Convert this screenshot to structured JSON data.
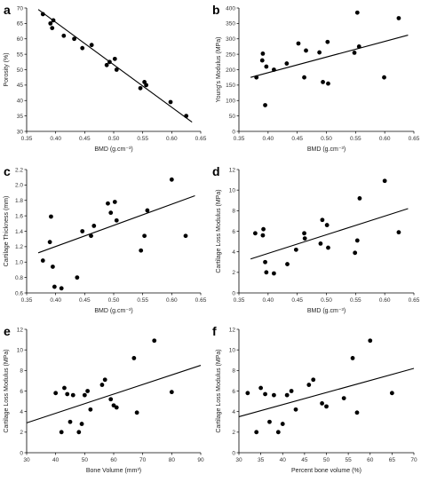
{
  "chart_data": [
    {
      "panel": "a",
      "type": "scatter",
      "xlabel": "BMD (g.cm⁻³)",
      "ylabel": "Porosity (%)",
      "xlim": [
        0.35,
        0.65
      ],
      "ylim": [
        30,
        70
      ],
      "xticks": [
        0.35,
        0.4,
        0.45,
        0.5,
        0.55,
        0.6,
        0.65
      ],
      "yticks": [
        30,
        35,
        40,
        45,
        50,
        55,
        60,
        65,
        70
      ],
      "xtick_labels": [
        "0.35",
        "0.40",
        "0.45",
        "0.50",
        "0.55",
        "0.60",
        "0.65"
      ],
      "ytick_labels": [
        "30",
        "35",
        "40",
        "45",
        "50",
        "55",
        "60",
        "65",
        "70"
      ],
      "x": [
        0.378,
        0.391,
        0.394,
        0.396,
        0.414,
        0.432,
        0.446,
        0.462,
        0.488,
        0.493,
        0.502,
        0.505,
        0.546,
        0.553,
        0.556,
        0.598,
        0.625
      ],
      "y": [
        68.0,
        65.0,
        63.5,
        66.0,
        61.0,
        60.0,
        57.0,
        58.0,
        51.5,
        52.5,
        53.5,
        50.0,
        44.0,
        46.0,
        45.0,
        39.5,
        35.0
      ],
      "trend": [
        [
          0.37,
          69.5
        ],
        [
          0.635,
          33.0
        ]
      ]
    },
    {
      "panel": "b",
      "type": "scatter",
      "xlabel": "BMD (g.cm⁻³)",
      "ylabel": "Young's Modulus (MPa)",
      "xlim": [
        0.35,
        0.65
      ],
      "ylim": [
        0,
        400
      ],
      "xticks": [
        0.35,
        0.4,
        0.45,
        0.5,
        0.55,
        0.6,
        0.65
      ],
      "yticks": [
        0,
        50,
        100,
        150,
        200,
        250,
        300,
        350,
        400
      ],
      "xtick_labels": [
        "0.35",
        "0.40",
        "0.45",
        "0.50",
        "0.55",
        "0.60",
        "0.65"
      ],
      "ytick_labels": [
        "0",
        "50",
        "100",
        "150",
        "200",
        "250",
        "300",
        "350",
        "400"
      ],
      "x": [
        0.38,
        0.39,
        0.391,
        0.395,
        0.397,
        0.41,
        0.432,
        0.452,
        0.462,
        0.465,
        0.488,
        0.494,
        0.502,
        0.503,
        0.548,
        0.553,
        0.556,
        0.599,
        0.624
      ],
      "y": [
        175,
        230,
        252,
        85,
        210,
        200,
        220,
        285,
        175,
        262,
        256,
        160,
        290,
        155,
        255,
        385,
        275,
        175,
        367
      ],
      "trend": [
        [
          0.37,
          175
        ],
        [
          0.64,
          312
        ]
      ]
    },
    {
      "panel": "c",
      "type": "scatter",
      "xlabel": "BMD (g.cm⁻³)",
      "ylabel": "Cartilage Thickness (mm)",
      "xlim": [
        0.35,
        0.65
      ],
      "ylim": [
        0.6,
        2.2
      ],
      "xticks": [
        0.35,
        0.4,
        0.45,
        0.5,
        0.55,
        0.6,
        0.65
      ],
      "yticks": [
        0.6,
        0.8,
        1.0,
        1.2,
        1.4,
        1.6,
        1.8,
        2.0,
        2.2
      ],
      "xtick_labels": [
        "0.35",
        "0.40",
        "0.45",
        "0.50",
        "0.55",
        "0.60",
        "0.65"
      ],
      "ytick_labels": [
        "0.6",
        "0.8",
        "1.0",
        "1.2",
        "1.4",
        "1.6",
        "1.8",
        "2.0",
        "2.2"
      ],
      "x": [
        0.378,
        0.39,
        0.392,
        0.395,
        0.398,
        0.41,
        0.437,
        0.446,
        0.461,
        0.466,
        0.49,
        0.495,
        0.502,
        0.505,
        0.547,
        0.553,
        0.558,
        0.6,
        0.624
      ],
      "y": [
        1.02,
        1.26,
        1.59,
        0.94,
        0.68,
        0.66,
        0.8,
        1.4,
        1.34,
        1.47,
        1.76,
        1.64,
        1.78,
        1.54,
        1.15,
        1.34,
        1.67,
        2.07,
        1.34
      ],
      "trend": [
        [
          0.37,
          1.12
        ],
        [
          0.64,
          1.86
        ]
      ]
    },
    {
      "panel": "d",
      "type": "scatter",
      "xlabel": "BMD (g.cm⁻³)",
      "ylabel": "Cartilage Loss Modulus (MPa)",
      "xlim": [
        0.35,
        0.65
      ],
      "ylim": [
        0,
        12
      ],
      "xticks": [
        0.35,
        0.4,
        0.45,
        0.5,
        0.55,
        0.6,
        0.65
      ],
      "yticks": [
        0,
        2,
        4,
        6,
        8,
        10,
        12
      ],
      "xtick_labels": [
        "0.35",
        "0.40",
        "0.45",
        "0.50",
        "0.55",
        "0.60",
        "0.65"
      ],
      "ytick_labels": [
        "0",
        "2",
        "4",
        "6",
        "8",
        "10",
        "12"
      ],
      "x": [
        0.378,
        0.391,
        0.392,
        0.395,
        0.397,
        0.41,
        0.433,
        0.448,
        0.462,
        0.463,
        0.49,
        0.493,
        0.501,
        0.503,
        0.549,
        0.553,
        0.557,
        0.6,
        0.624
      ],
      "y": [
        5.8,
        5.6,
        6.2,
        3.0,
        2.0,
        1.9,
        2.8,
        4.2,
        5.8,
        5.3,
        4.8,
        7.1,
        6.6,
        4.4,
        3.9,
        5.1,
        9.2,
        10.9,
        5.9
      ],
      "trend": [
        [
          0.37,
          3.3
        ],
        [
          0.64,
          8.2
        ]
      ]
    },
    {
      "panel": "e",
      "type": "scatter",
      "xlabel": "Bone Volume (mm³)",
      "ylabel": "Cartilage Loss Modulus (MPa)",
      "xlim": [
        30,
        90
      ],
      "ylim": [
        0,
        12
      ],
      "xticks": [
        30,
        40,
        50,
        60,
        70,
        80,
        90
      ],
      "yticks": [
        0,
        2,
        4,
        6,
        8,
        10,
        12
      ],
      "xtick_labels": [
        "30",
        "40",
        "50",
        "60",
        "70",
        "80",
        "90"
      ],
      "ytick_labels": [
        "0",
        "2",
        "4",
        "6",
        "8",
        "10",
        "12"
      ],
      "x": [
        40,
        42,
        43,
        44,
        45,
        46,
        48,
        49,
        50,
        51,
        52,
        56,
        57,
        59,
        60,
        61,
        67,
        68,
        74,
        80
      ],
      "y": [
        5.8,
        2.0,
        6.3,
        5.7,
        3.0,
        5.6,
        2.0,
        2.8,
        5.6,
        6.0,
        4.2,
        6.6,
        7.1,
        5.2,
        4.6,
        4.4,
        9.2,
        3.9,
        10.9,
        5.9
      ],
      "trend": [
        [
          30,
          2.9
        ],
        [
          90,
          8.5
        ]
      ]
    },
    {
      "panel": "f",
      "type": "scatter",
      "xlabel": "Percent bone volume (%)",
      "ylabel": "Cartilage Loss Modulus (MPa)",
      "xlim": [
        30,
        70
      ],
      "ylim": [
        0,
        12
      ],
      "xticks": [
        30,
        35,
        40,
        45,
        50,
        55,
        60,
        65,
        70
      ],
      "yticks": [
        0,
        2,
        4,
        6,
        8,
        10,
        12
      ],
      "xtick_labels": [
        "30",
        "35",
        "40",
        "45",
        "50",
        "55",
        "60",
        "65",
        "70"
      ],
      "ytick_labels": [
        "0",
        "2",
        "4",
        "6",
        "8",
        "10",
        "12"
      ],
      "x": [
        32,
        34,
        35,
        36,
        37,
        38,
        39,
        40,
        41,
        42,
        43,
        46,
        47,
        49,
        50,
        54,
        56,
        57,
        60,
        65
      ],
      "y": [
        5.8,
        2.0,
        6.3,
        5.7,
        3.0,
        5.6,
        2.0,
        2.8,
        5.6,
        6.0,
        4.2,
        6.6,
        7.1,
        4.8,
        4.5,
        5.3,
        9.2,
        3.9,
        10.9,
        5.8
      ],
      "trend": [
        [
          30,
          3.5
        ],
        [
          70,
          8.2
        ]
      ]
    }
  ]
}
